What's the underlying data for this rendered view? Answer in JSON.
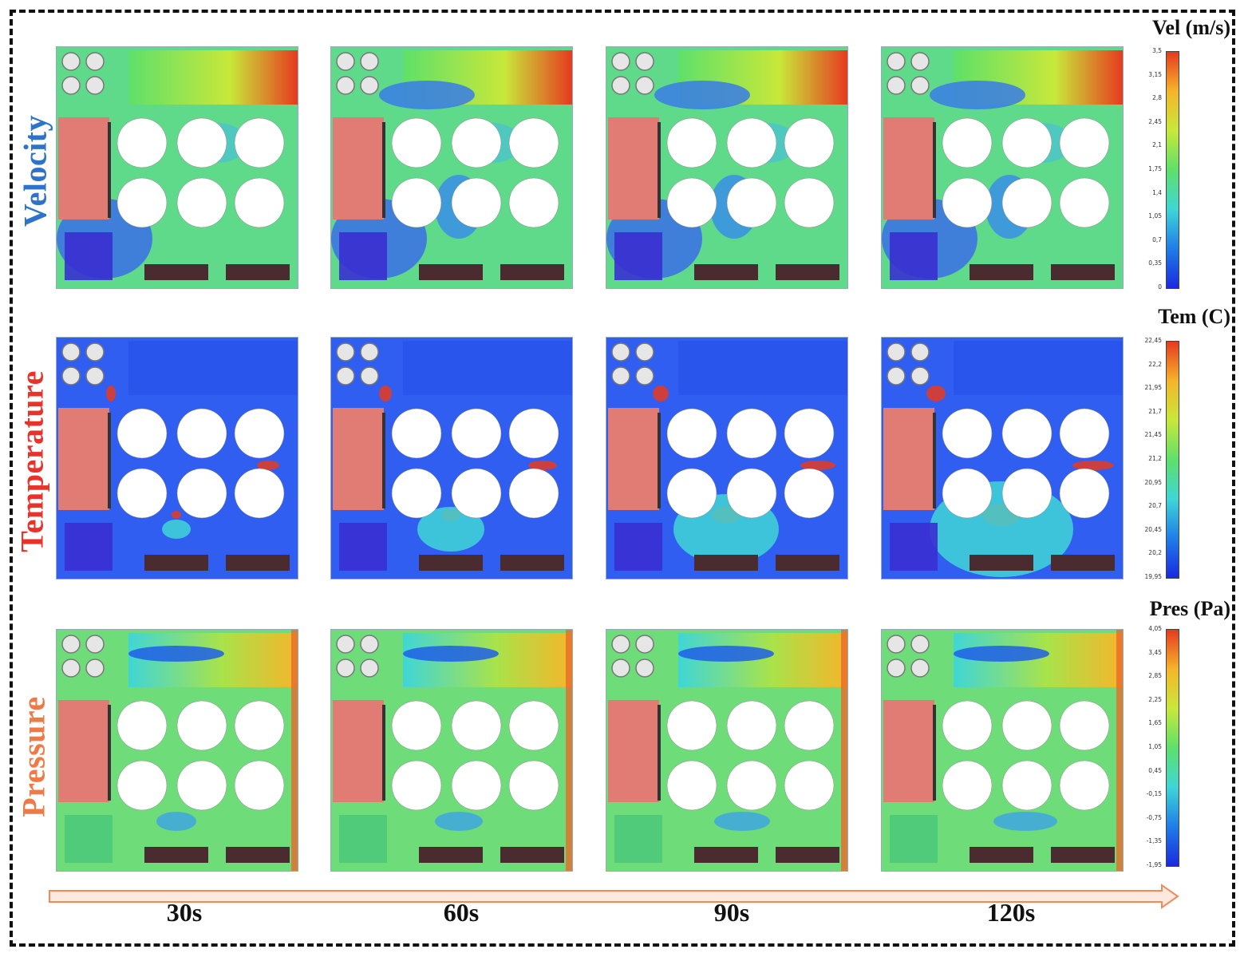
{
  "rows": [
    {
      "key": "velocity",
      "label": "Velocity",
      "color": "#2d73c9",
      "colorbar_title": "Vel (m/s)",
      "ticks": [
        "3,5",
        "3,15",
        "2,8",
        "2,45",
        "2,1",
        "1,75",
        "1,4",
        "1,05",
        "0,7",
        "0,35",
        "0"
      ]
    },
    {
      "key": "temperature",
      "label": "Temperature",
      "color": "#e8322a",
      "colorbar_title": "Tem (C)",
      "ticks": [
        "22,45",
        "22,2",
        "21,95",
        "21,7",
        "21,45",
        "21,2",
        "20,95",
        "20,7",
        "20,45",
        "20,2",
        "19,95"
      ]
    },
    {
      "key": "pressure",
      "label": "Pressure",
      "color": "#ef7a45",
      "colorbar_title": "Pres (Pa)",
      "ticks": [
        "4,05",
        "3,45",
        "2,85",
        "2,25",
        "1,65",
        "1,05",
        "0,45",
        "-0,15",
        "-0,75",
        "-1,35",
        "-1,95"
      ]
    }
  ],
  "times": [
    "30s",
    "60s",
    "90s",
    "120s"
  ],
  "colors": {
    "colormap": [
      "#1a2ae0",
      "#1f7de8",
      "#3fd6d6",
      "#5ee06a",
      "#c8e83a",
      "#f5b52a",
      "#e63a1f"
    ],
    "building": "#e07c74",
    "panel_dark": "#4a2c30",
    "arrow": "#f08a5a"
  }
}
